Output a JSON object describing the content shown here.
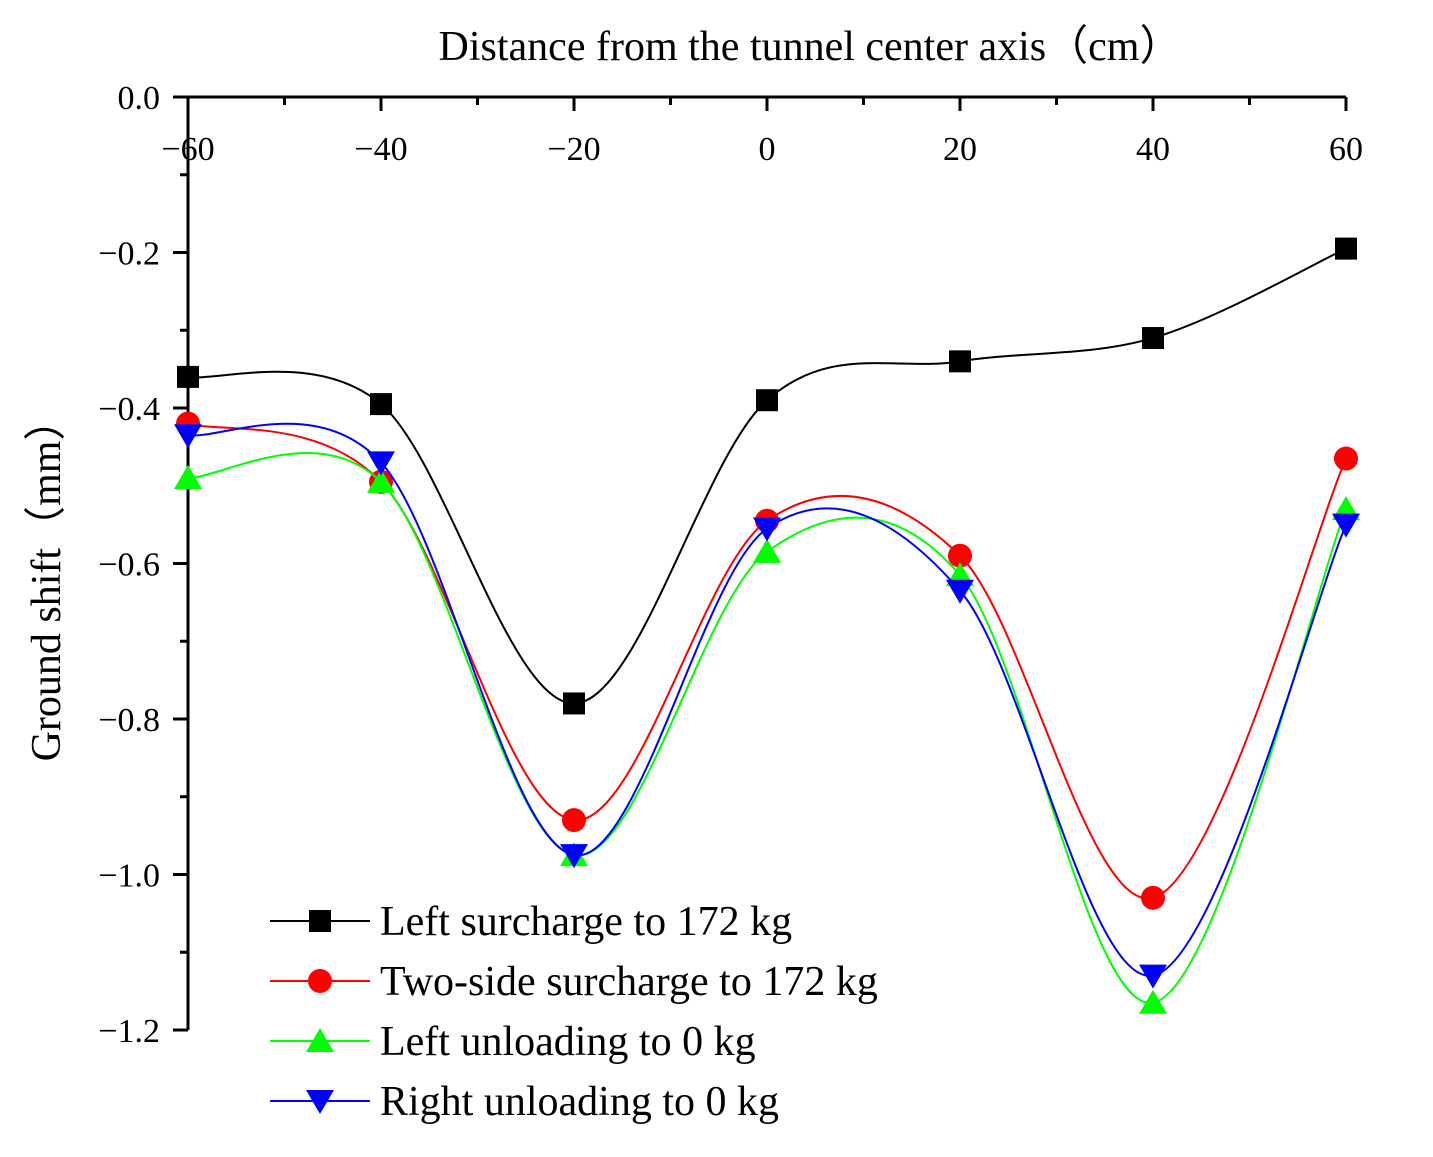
{
  "chart_data": {
    "type": "line",
    "title": "",
    "xlabel": "Distance from the tunnel center axis（cm）",
    "ylabel": "Ground shift（mm）",
    "xlim": [
      -60,
      60
    ],
    "ylim": [
      -1.2,
      0.0
    ],
    "x_ticks": [
      "−60",
      "−40",
      "−20",
      "0",
      "20",
      "40",
      "60"
    ],
    "y_ticks": [
      "0.0",
      "−0.2",
      "−0.4",
      "−0.6",
      "−0.8",
      "−1.0",
      "−1.2"
    ],
    "x_axis_position": "top",
    "grid": false,
    "legend_position": "bottom-left",
    "x": [
      -60,
      -40,
      -20,
      0,
      20,
      40,
      60
    ],
    "series": [
      {
        "name": "Left surcharge to 172 kg",
        "color": "#000000",
        "marker": "square",
        "values": [
          -0.36,
          -0.395,
          -0.78,
          -0.39,
          -0.34,
          -0.31,
          -0.195
        ]
      },
      {
        "name": "Two-side surcharge to 172 kg",
        "color": "#ff0000",
        "marker": "circle",
        "values": [
          -0.42,
          -0.495,
          -0.93,
          -0.545,
          -0.59,
          -1.03,
          -0.465
        ]
      },
      {
        "name": "Left unloading to 0 kg",
        "color": "#00ff00",
        "marker": "triangle-up",
        "values": [
          -0.49,
          -0.495,
          -0.975,
          -0.585,
          -0.615,
          -1.165,
          -0.53
        ]
      },
      {
        "name": "Right unloading to 0 kg",
        "color": "#0000ff",
        "marker": "triangle-down",
        "values": [
          -0.435,
          -0.47,
          -0.975,
          -0.555,
          -0.635,
          -1.13,
          -0.55
        ]
      }
    ]
  }
}
